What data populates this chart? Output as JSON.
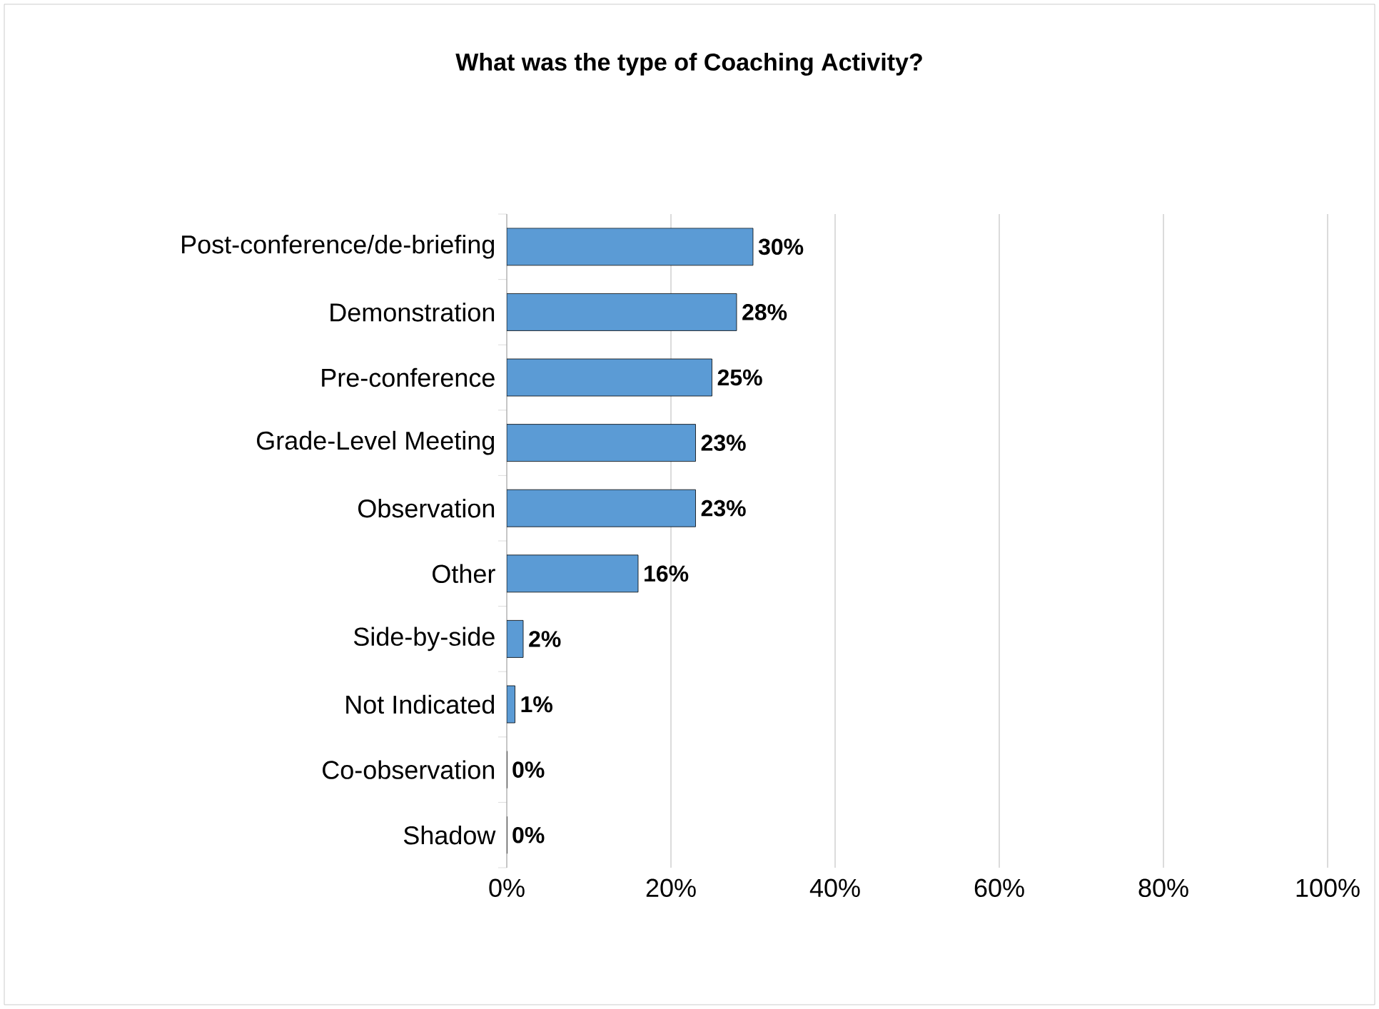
{
  "chart_data": {
    "type": "bar",
    "orientation": "horizontal",
    "title": "What was the type of Coaching Activity?",
    "categories": [
      "Post-conference/de-briefing",
      "Demonstration",
      "Pre-conference",
      "Grade-Level Meeting",
      "Observation",
      "Other",
      "Side-by-side",
      "Not Indicated",
      "Co-observation",
      "Shadow"
    ],
    "values": [
      30,
      28,
      25,
      23,
      23,
      16,
      2,
      1,
      0,
      0
    ],
    "value_labels": [
      "30%",
      "28%",
      "25%",
      "23%",
      "23%",
      "16%",
      "2%",
      "1%",
      "0%",
      "0%"
    ],
    "color": "#5b9bd5",
    "xlim": [
      0,
      100
    ],
    "xticks": [
      {
        "value": 0,
        "label": "0%"
      },
      {
        "value": 20,
        "label": "20%"
      },
      {
        "value": 40,
        "label": "40%"
      },
      {
        "value": 60,
        "label": "60%"
      },
      {
        "value": 80,
        "label": "80%"
      },
      {
        "value": 100,
        "label": "100%"
      }
    ],
    "grid": "x"
  }
}
